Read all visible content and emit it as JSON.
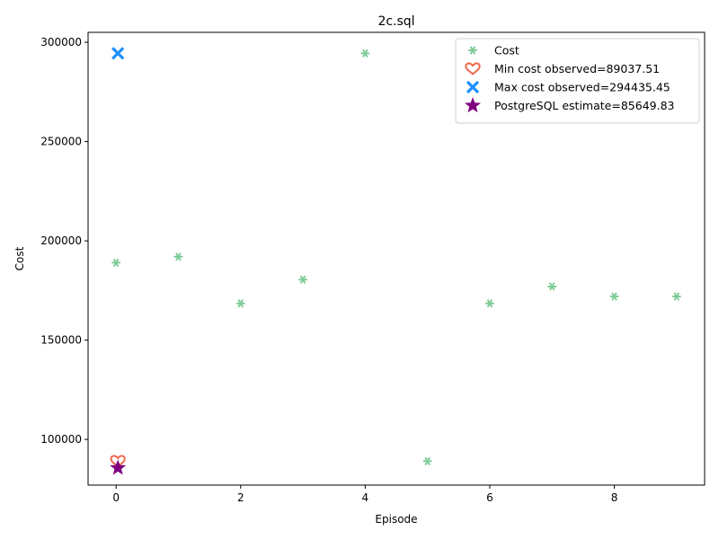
{
  "chart_data": {
    "type": "scatter",
    "title": "2c.sql",
    "xlabel": "Episode",
    "ylabel": "Cost",
    "xlim": [
      -0.45,
      9.45
    ],
    "ylim": [
      77000,
      305000
    ],
    "xticks": [
      0,
      2,
      4,
      6,
      8
    ],
    "yticks": [
      100000,
      150000,
      200000,
      250000,
      300000
    ],
    "grid": false,
    "legend_position": "top-right",
    "series": [
      {
        "name": "Cost",
        "marker": "asterisk",
        "color": "#7fcc97",
        "points": [
          {
            "x": 0,
            "y": 189000
          },
          {
            "x": 1,
            "y": 192000
          },
          {
            "x": 2,
            "y": 168500
          },
          {
            "x": 3,
            "y": 180500
          },
          {
            "x": 4,
            "y": 294435.45
          },
          {
            "x": 5,
            "y": 89037.51
          },
          {
            "x": 6,
            "y": 168500
          },
          {
            "x": 7,
            "y": 177000
          },
          {
            "x": 8,
            "y": 172000
          },
          {
            "x": 9,
            "y": 172000
          }
        ]
      },
      {
        "name": "Min cost observed=89037.51",
        "marker": "heart",
        "color": "#ee6a50",
        "points": [
          {
            "x": 0,
            "y": 89037.51
          }
        ]
      },
      {
        "name": "Max cost observed=294435.45",
        "marker": "x",
        "color": "#1e90ff",
        "points": [
          {
            "x": 0,
            "y": 294435.45
          }
        ]
      },
      {
        "name": "PostgreSQL estimate=85649.83",
        "marker": "star",
        "color": "#800080",
        "points": [
          {
            "x": 0,
            "y": 85649.83
          }
        ]
      }
    ]
  }
}
